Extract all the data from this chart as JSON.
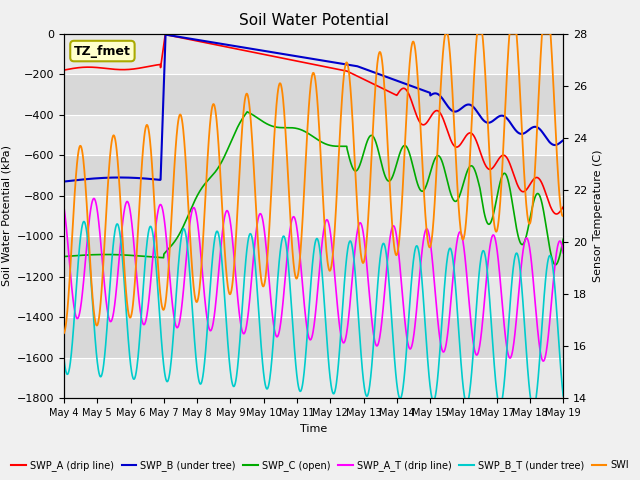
{
  "title": "Soil Water Potential",
  "ylabel_left": "Soil Water Potential (kPa)",
  "ylabel_right": "Sensor Temperature (C)",
  "xlabel": "Time",
  "ylim_left": [
    -1800,
    28
  ],
  "ylim_right": [
    14,
    28
  ],
  "annotation": "TZ_fmet",
  "bg_color": "#f0f0f0",
  "plot_bg_light": "#e8e8e8",
  "plot_bg_dark": "#d8d8d8",
  "legend_items": [
    {
      "label": "SWP_A (drip line)",
      "color": "#ff0000"
    },
    {
      "label": "SWP_B (under tree)",
      "color": "#0000cc"
    },
    {
      "label": "SWP_C (open)",
      "color": "#00aa00"
    },
    {
      "label": "SWP_A_T (drip line)",
      "color": "#ff00ff"
    },
    {
      "label": "SWP_B_T (under tree)",
      "color": "#00cccc"
    },
    {
      "label": "SWI",
      "color": "#ff8800"
    }
  ],
  "xtick_labels": [
    "May 4",
    "May 5",
    "May 6",
    "May 7",
    "May 8",
    "May 9",
    "May 10",
    "May 11",
    "May 12",
    "May 13",
    "May 14",
    "May 15",
    "May 16",
    "May 17",
    "May 18",
    "May 19"
  ],
  "yticks_left": [
    0,
    -200,
    -400,
    -600,
    -800,
    -1000,
    -1200,
    -1400,
    -1600,
    -1800
  ],
  "yticks_right": [
    14,
    16,
    18,
    20,
    22,
    24,
    26,
    28
  ],
  "grid_color": "#ffffff",
  "line_colors": {
    "SWP_A": "#ff0000",
    "SWP_B": "#0000cc",
    "SWP_C": "#00aa00",
    "SWP_A_T": "#ff00ff",
    "SWP_B_T": "#00cccc",
    "SWP_C_T": "#ff8800"
  }
}
